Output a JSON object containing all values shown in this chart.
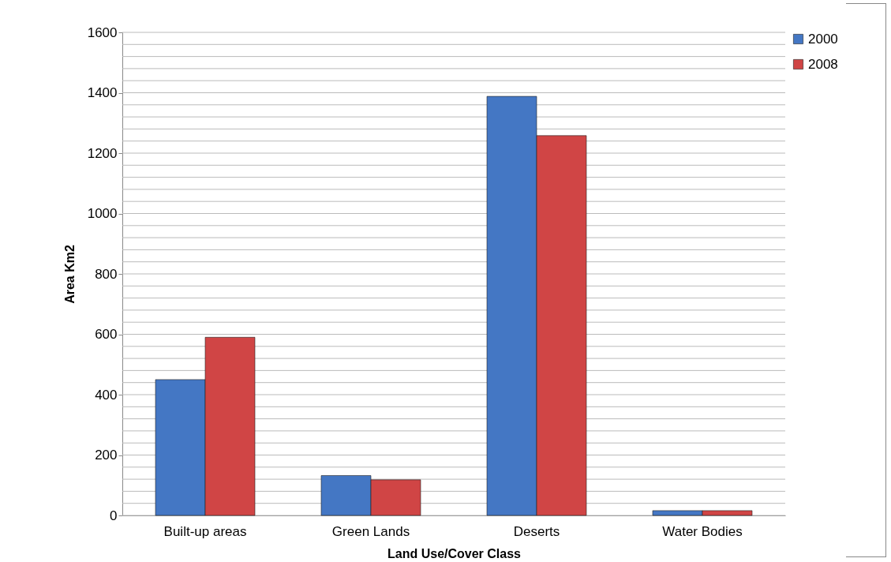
{
  "chart_data": {
    "type": "bar",
    "xlabel": "Land Use/Cover Class",
    "ylabel": "Area Km2",
    "categories": [
      "Built-up areas",
      "Green Lands",
      "Deserts",
      "Water Bodies"
    ],
    "series": [
      {
        "name": "2000",
        "color": "#4477c4",
        "values": [
          450,
          132,
          1388,
          16
        ]
      },
      {
        "name": "2008",
        "color": "#d04545",
        "values": [
          590,
          118,
          1258,
          16
        ]
      }
    ],
    "ylim": [
      0,
      1600
    ],
    "yticks": [
      0,
      {
        "value": 40,
        "label": null
      },
      {
        "value": 80,
        "label": null
      },
      {
        "value": 120,
        "label": null
      },
      {
        "value": 160,
        "label": null
      },
      200,
      {
        "value": 240,
        "label": null
      },
      {
        "value": 280,
        "label": null
      },
      {
        "value": 320,
        "label": null
      },
      {
        "value": 360,
        "label": null
      },
      400,
      {
        "value": 440,
        "label": null
      },
      {
        "value": 480,
        "label": null
      },
      {
        "value": 520,
        "label": null
      },
      {
        "value": 560,
        "label": null
      },
      600,
      {
        "value": 640,
        "label": null
      },
      {
        "value": 680,
        "label": null
      },
      {
        "value": 720,
        "label": null
      },
      {
        "value": 760,
        "label": null
      },
      800,
      {
        "value": 840,
        "label": null
      },
      {
        "value": 880,
        "label": null
      },
      {
        "value": 920,
        "label": null
      },
      {
        "value": 960,
        "label": null
      },
      1000,
      {
        "value": 1040,
        "label": null
      },
      {
        "value": 1080,
        "label": null
      },
      {
        "value": 1120,
        "label": null
      },
      {
        "value": 1160,
        "label": null
      },
      1200,
      {
        "value": 1240,
        "label": null
      },
      {
        "value": 1280,
        "label": null
      },
      {
        "value": 1320,
        "label": null
      },
      {
        "value": 1360,
        "label": null
      },
      1400,
      {
        "value": 1440,
        "label": null
      },
      {
        "value": 1480,
        "label": null
      },
      {
        "value": 1520,
        "label": null
      },
      {
        "value": 1560,
        "label": null
      },
      1600
    ],
    "grid": true,
    "legend": "right"
  }
}
